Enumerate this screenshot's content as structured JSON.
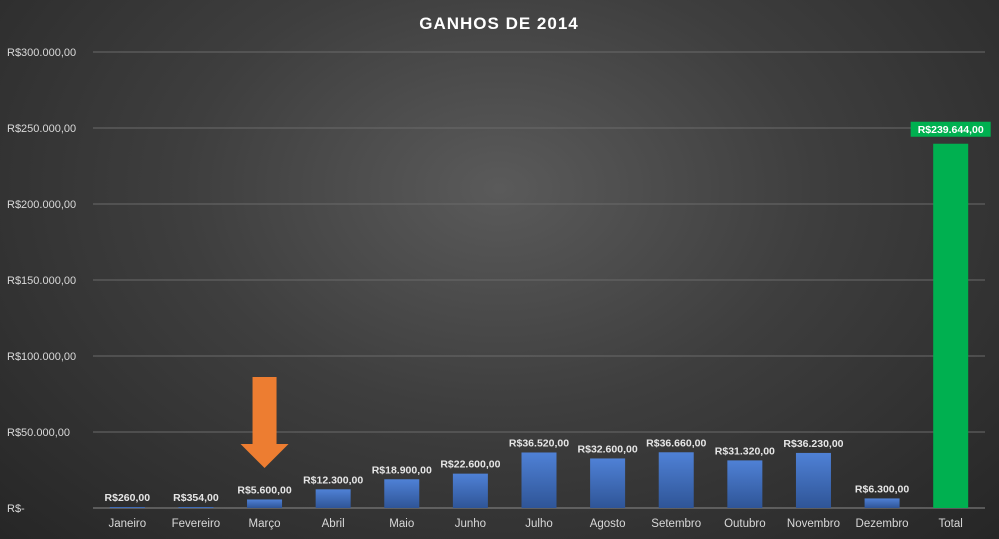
{
  "chart_data": {
    "type": "bar",
    "title": "GANHOS  DE 2014",
    "categories": [
      "Janeiro",
      "Fevereiro",
      "Março",
      "Abril",
      "Maio",
      "Junho",
      "Julho",
      "Agosto",
      "Setembro",
      "Outubro",
      "Novembro",
      "Dezembro",
      "Total"
    ],
    "values": [
      260,
      354,
      5600,
      12300,
      18900,
      22600,
      36520,
      32600,
      36660,
      31320,
      36230,
      6300,
      239644
    ],
    "data_labels": [
      "R$260,00",
      "R$354,00",
      "R$5.600,00",
      "R$12.300,00",
      "R$18.900,00",
      "R$22.600,00",
      "R$36.520,00",
      "R$32.600,00",
      "R$36.660,00",
      "R$31.320,00",
      "R$36.230,00",
      "R$6.300,00",
      "R$239.644,00"
    ],
    "ylim": [
      0,
      300000
    ],
    "yticks": [
      0,
      50000,
      100000,
      150000,
      200000,
      250000,
      300000
    ],
    "ytick_labels": [
      "R$-",
      "R$50.000,00",
      "R$100.000,00",
      "R$150.000,00",
      "R$200.000,00",
      "R$250.000,00",
      "R$300.000,00"
    ],
    "grid": true,
    "colors": {
      "bar": "#4472c4",
      "bar_dark": "#2f5597",
      "total": "#00b050",
      "arrow": "#ed7d31"
    },
    "annotation": {
      "type": "arrow",
      "points_to": "Março"
    }
  }
}
